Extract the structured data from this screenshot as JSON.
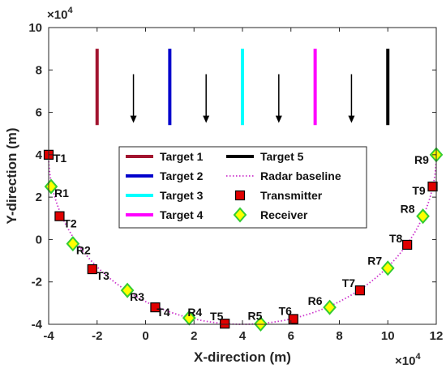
{
  "chart_data": {
    "type": "scatter",
    "xlabel": "X-direction (m)",
    "ylabel": "Y-direction (m)",
    "x_multiplier": "×10",
    "x_exponent": "4",
    "y_multiplier": "×10",
    "y_exponent": "4",
    "xlim": [
      -40000,
      120000
    ],
    "ylim": [
      -40000,
      100000
    ],
    "xticks": [
      -40000,
      -20000,
      0,
      20000,
      40000,
      60000,
      80000,
      100000,
      120000
    ],
    "yticks": [
      -40000,
      -20000,
      0,
      20000,
      40000,
      60000,
      80000,
      100000
    ],
    "xtick_labels": [
      "-4",
      "-2",
      "0",
      "2",
      "4",
      "6",
      "8",
      "10",
      "12"
    ],
    "ytick_labels": [
      "-4",
      "-2",
      "0",
      "2",
      "4",
      "6",
      "8",
      "10"
    ],
    "grid": false,
    "legend_position": "center",
    "targets": [
      {
        "name": "Target 1",
        "color": "#A2142F",
        "x": -20000,
        "y_bottom": 54000,
        "y_top": 90000,
        "arrow_x": -5000
      },
      {
        "name": "Target 2",
        "color": "#0000CC",
        "x": 10000,
        "y_bottom": 54000,
        "y_top": 90000,
        "arrow_x": 25000
      },
      {
        "name": "Target 3",
        "color": "#00FFFF",
        "x": 40000,
        "y_bottom": 54000,
        "y_top": 90000,
        "arrow_x": 55000
      },
      {
        "name": "Target 4",
        "color": "#FF00FF",
        "x": 70000,
        "y_bottom": 54000,
        "y_top": 90000,
        "arrow_x": 85000
      },
      {
        "name": "Target 5",
        "color": "#000000",
        "x": 100000,
        "y_bottom": 54000,
        "y_top": 90000,
        "arrow_x": null
      }
    ],
    "arrows": {
      "y_start": 78000,
      "y_end": 55000,
      "color": "#000000"
    },
    "baseline": {
      "name": "Radar baseline",
      "color": "#CC33CC",
      "center": [
        40000,
        40000
      ],
      "radius": 80000
    },
    "transmitters": {
      "name": "Transmitter",
      "color": "#E00000",
      "labels": [
        "T1",
        "T2",
        "T3",
        "T4",
        "T5",
        "T6",
        "T7",
        "T8",
        "T9"
      ],
      "points": [
        [
          -40000,
          40000
        ],
        [
          -35500,
          11000
        ],
        [
          -22000,
          -14000
        ],
        [
          4000,
          -32000
        ],
        [
          32700,
          -39700
        ],
        [
          61000,
          -37500
        ],
        [
          88500,
          -24000
        ],
        [
          108000,
          -2500
        ],
        [
          118500,
          25000
        ]
      ]
    },
    "receivers": {
      "name": "Receiver",
      "color": "#FFFF00",
      "edge_color": "#33CC33",
      "labels": [
        "R1",
        "R2",
        "R3",
        "R4",
        "R5",
        "R6",
        "R7",
        "R8",
        "R9"
      ],
      "points": [
        [
          -39000,
          25000
        ],
        [
          -30000,
          -2000
        ],
        [
          -7500,
          -24000
        ],
        [
          18000,
          -37000
        ],
        [
          47500,
          -39800
        ],
        [
          76000,
          -32000
        ],
        [
          100000,
          -13500
        ],
        [
          114500,
          11000
        ],
        [
          120000,
          40000
        ]
      ]
    },
    "legend": [
      {
        "label": "Target 1",
        "kind": "line",
        "color": "#A2142F"
      },
      {
        "label": "Target 2",
        "kind": "line",
        "color": "#0000CC"
      },
      {
        "label": "Target 3",
        "kind": "line",
        "color": "#00FFFF"
      },
      {
        "label": "Target 4",
        "kind": "line",
        "color": "#FF00FF"
      },
      {
        "label": "Target 5",
        "kind": "line",
        "color": "#000000"
      },
      {
        "label": "Radar baseline",
        "kind": "dotted",
        "color": "#CC33CC"
      },
      {
        "label": "Transmitter",
        "kind": "square",
        "color": "#E00000"
      },
      {
        "label": "Receiver",
        "kind": "diamond",
        "color": "#FFFF00"
      }
    ]
  }
}
